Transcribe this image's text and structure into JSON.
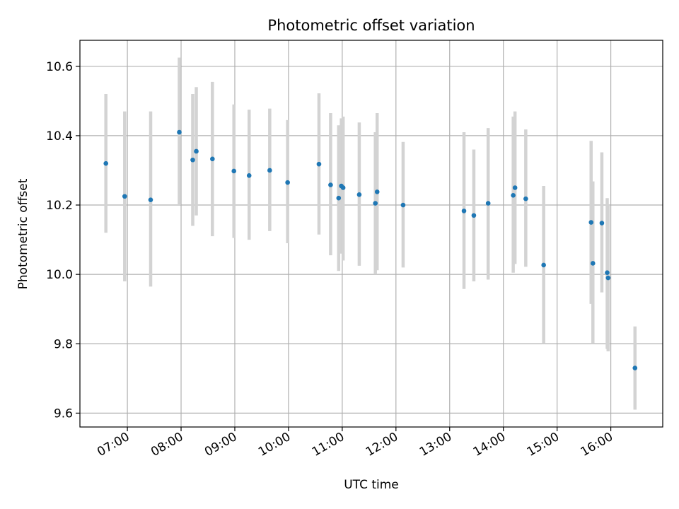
{
  "chart_data": {
    "type": "scatter",
    "title": "Photometric offset variation",
    "xlabel": "UTC time",
    "ylabel": "Photometric offset",
    "x_unit": "hours UTC",
    "xlim": [
      "06:07",
      "16:58"
    ],
    "ylim": [
      9.56,
      10.675
    ],
    "x_ticks": [
      {
        "value": "07:00",
        "label": "07:00"
      },
      {
        "value": "08:00",
        "label": "08:00"
      },
      {
        "value": "09:00",
        "label": "09:00"
      },
      {
        "value": "10:00",
        "label": "10:00"
      },
      {
        "value": "11:00",
        "label": "11:00"
      },
      {
        "value": "12:00",
        "label": "12:00"
      },
      {
        "value": "13:00",
        "label": "13:00"
      },
      {
        "value": "14:00",
        "label": "14:00"
      },
      {
        "value": "15:00",
        "label": "15:00"
      },
      {
        "value": "16:00",
        "label": "16:00"
      }
    ],
    "y_ticks": [
      {
        "value": 9.6,
        "label": "9.6"
      },
      {
        "value": 9.8,
        "label": "9.8"
      },
      {
        "value": 10.0,
        "label": "10.0"
      },
      {
        "value": 10.2,
        "label": "10.2"
      },
      {
        "value": 10.4,
        "label": "10.4"
      },
      {
        "value": 10.6,
        "label": "10.6"
      }
    ],
    "grid": true,
    "point_color": "#1f77b4",
    "error_bar_color": "#d3d3d3",
    "points": [
      {
        "x": "06:36",
        "y": 10.32,
        "ylow": 10.12,
        "yhigh": 10.52
      },
      {
        "x": "06:57",
        "y": 10.225,
        "ylow": 9.98,
        "yhigh": 10.47
      },
      {
        "x": "07:26",
        "y": 10.215,
        "ylow": 9.965,
        "yhigh": 10.47
      },
      {
        "x": "07:58",
        "y": 10.41,
        "ylow": 10.2,
        "yhigh": 10.625
      },
      {
        "x": "08:13",
        "y": 10.33,
        "ylow": 10.14,
        "yhigh": 10.52
      },
      {
        "x": "08:17",
        "y": 10.355,
        "ylow": 10.17,
        "yhigh": 10.54
      },
      {
        "x": "08:35",
        "y": 10.333,
        "ylow": 10.11,
        "yhigh": 10.555
      },
      {
        "x": "08:59",
        "y": 10.298,
        "ylow": 10.105,
        "yhigh": 10.49
      },
      {
        "x": "09:16",
        "y": 10.285,
        "ylow": 10.1,
        "yhigh": 10.475
      },
      {
        "x": "09:39",
        "y": 10.3,
        "ylow": 10.125,
        "yhigh": 10.478
      },
      {
        "x": "09:59",
        "y": 10.265,
        "ylow": 10.09,
        "yhigh": 10.445
      },
      {
        "x": "10:34",
        "y": 10.318,
        "ylow": 10.115,
        "yhigh": 10.522
      },
      {
        "x": "10:47",
        "y": 10.258,
        "ylow": 10.055,
        "yhigh": 10.465
      },
      {
        "x": "10:56",
        "y": 10.22,
        "ylow": 10.01,
        "yhigh": 10.43
      },
      {
        "x": "10:59",
        "y": 10.255,
        "ylow": 10.06,
        "yhigh": 10.45
      },
      {
        "x": "11:01",
        "y": 10.25,
        "ylow": 10.04,
        "yhigh": 10.455
      },
      {
        "x": "11:19",
        "y": 10.23,
        "ylow": 10.025,
        "yhigh": 10.438
      },
      {
        "x": "11:37",
        "y": 10.205,
        "ylow": 10.0,
        "yhigh": 10.41
      },
      {
        "x": "11:39",
        "y": 10.238,
        "ylow": 10.012,
        "yhigh": 10.465
      },
      {
        "x": "12:08",
        "y": 10.2,
        "ylow": 10.02,
        "yhigh": 10.382
      },
      {
        "x": "13:16",
        "y": 10.183,
        "ylow": 9.958,
        "yhigh": 10.41
      },
      {
        "x": "13:27",
        "y": 10.17,
        "ylow": 9.98,
        "yhigh": 10.36
      },
      {
        "x": "13:43",
        "y": 10.205,
        "ylow": 9.985,
        "yhigh": 10.422
      },
      {
        "x": "14:11",
        "y": 10.228,
        "ylow": 10.005,
        "yhigh": 10.455
      },
      {
        "x": "14:13",
        "y": 10.25,
        "ylow": 10.03,
        "yhigh": 10.47
      },
      {
        "x": "14:25",
        "y": 10.218,
        "ylow": 10.022,
        "yhigh": 10.418
      },
      {
        "x": "14:45",
        "y": 10.027,
        "ylow": 9.8,
        "yhigh": 10.255
      },
      {
        "x": "15:38",
        "y": 10.15,
        "ylow": 9.915,
        "yhigh": 10.385
      },
      {
        "x": "15:40",
        "y": 10.032,
        "ylow": 9.8,
        "yhigh": 10.268
      },
      {
        "x": "15:50",
        "y": 10.148,
        "ylow": 9.948,
        "yhigh": 10.352
      },
      {
        "x": "15:56",
        "y": 10.005,
        "ylow": 9.785,
        "yhigh": 10.22
      },
      {
        "x": "15:57",
        "y": 9.99,
        "ylow": 9.778,
        "yhigh": 10.2
      },
      {
        "x": "16:27",
        "y": 9.73,
        "ylow": 9.61,
        "yhigh": 9.85
      }
    ]
  }
}
